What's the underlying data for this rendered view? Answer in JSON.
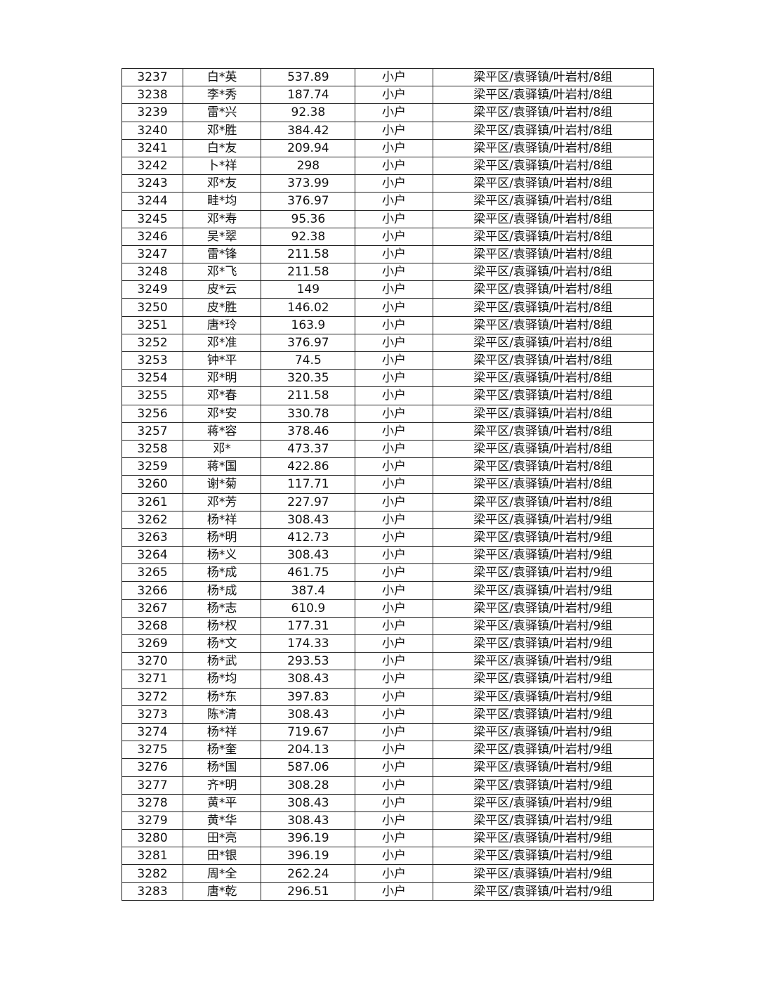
{
  "table": {
    "rows": [
      [
        "3237",
        "白*英",
        "537.89",
        "小户",
        "梁平区/袁驿镇/叶岩村/8组"
      ],
      [
        "3238",
        "李*秀",
        "187.74",
        "小户",
        "梁平区/袁驿镇/叶岩村/8组"
      ],
      [
        "3239",
        "雷*兴",
        "92.38",
        "小户",
        "梁平区/袁驿镇/叶岩村/8组"
      ],
      [
        "3240",
        "邓*胜",
        "384.42",
        "小户",
        "梁平区/袁驿镇/叶岩村/8组"
      ],
      [
        "3241",
        "白*友",
        "209.94",
        "小户",
        "梁平区/袁驿镇/叶岩村/8组"
      ],
      [
        "3242",
        "卜*祥",
        "298",
        "小户",
        "梁平区/袁驿镇/叶岩村/8组"
      ],
      [
        "3243",
        "邓*友",
        "373.99",
        "小户",
        "梁平区/袁驿镇/叶岩村/8组"
      ],
      [
        "3244",
        "畦*均",
        "376.97",
        "小户",
        "梁平区/袁驿镇/叶岩村/8组"
      ],
      [
        "3245",
        "邓*寿",
        "95.36",
        "小户",
        "梁平区/袁驿镇/叶岩村/8组"
      ],
      [
        "3246",
        "吴*翠",
        "92.38",
        "小户",
        "梁平区/袁驿镇/叶岩村/8组"
      ],
      [
        "3247",
        "雷*锋",
        "211.58",
        "小户",
        "梁平区/袁驿镇/叶岩村/8组"
      ],
      [
        "3248",
        "邓*飞",
        "211.58",
        "小户",
        "梁平区/袁驿镇/叶岩村/8组"
      ],
      [
        "3249",
        "皮*云",
        "149",
        "小户",
        "梁平区/袁驿镇/叶岩村/8组"
      ],
      [
        "3250",
        "皮*胜",
        "146.02",
        "小户",
        "梁平区/袁驿镇/叶岩村/8组"
      ],
      [
        "3251",
        "唐*玲",
        "163.9",
        "小户",
        "梁平区/袁驿镇/叶岩村/8组"
      ],
      [
        "3252",
        "邓*准",
        "376.97",
        "小户",
        "梁平区/袁驿镇/叶岩村/8组"
      ],
      [
        "3253",
        "钟*平",
        "74.5",
        "小户",
        "梁平区/袁驿镇/叶岩村/8组"
      ],
      [
        "3254",
        "邓*明",
        "320.35",
        "小户",
        "梁平区/袁驿镇/叶岩村/8组"
      ],
      [
        "3255",
        "邓*春",
        "211.58",
        "小户",
        "梁平区/袁驿镇/叶岩村/8组"
      ],
      [
        "3256",
        "邓*安",
        "330.78",
        "小户",
        "梁平区/袁驿镇/叶岩村/8组"
      ],
      [
        "3257",
        "蒋*容",
        "378.46",
        "小户",
        "梁平区/袁驿镇/叶岩村/8组"
      ],
      [
        "3258",
        "邓*",
        "473.37",
        "小户",
        "梁平区/袁驿镇/叶岩村/8组"
      ],
      [
        "3259",
        "蒋*国",
        "422.86",
        "小户",
        "梁平区/袁驿镇/叶岩村/8组"
      ],
      [
        "3260",
        "谢*菊",
        "117.71",
        "小户",
        "梁平区/袁驿镇/叶岩村/8组"
      ],
      [
        "3261",
        "邓*芳",
        "227.97",
        "小户",
        "梁平区/袁驿镇/叶岩村/8组"
      ],
      [
        "3262",
        "杨*祥",
        "308.43",
        "小户",
        "梁平区/袁驿镇/叶岩村/9组"
      ],
      [
        "3263",
        "杨*明",
        "412.73",
        "小户",
        "梁平区/袁驿镇/叶岩村/9组"
      ],
      [
        "3264",
        "杨*义",
        "308.43",
        "小户",
        "梁平区/袁驿镇/叶岩村/9组"
      ],
      [
        "3265",
        "杨*成",
        "461.75",
        "小户",
        "梁平区/袁驿镇/叶岩村/9组"
      ],
      [
        "3266",
        "杨*成",
        "387.4",
        "小户",
        "梁平区/袁驿镇/叶岩村/9组"
      ],
      [
        "3267",
        "杨*志",
        "610.9",
        "小户",
        "梁平区/袁驿镇/叶岩村/9组"
      ],
      [
        "3268",
        "杨*权",
        "177.31",
        "小户",
        "梁平区/袁驿镇/叶岩村/9组"
      ],
      [
        "3269",
        "杨*文",
        "174.33",
        "小户",
        "梁平区/袁驿镇/叶岩村/9组"
      ],
      [
        "3270",
        "杨*武",
        "293.53",
        "小户",
        "梁平区/袁驿镇/叶岩村/9组"
      ],
      [
        "3271",
        "杨*均",
        "308.43",
        "小户",
        "梁平区/袁驿镇/叶岩村/9组"
      ],
      [
        "3272",
        "杨*东",
        "397.83",
        "小户",
        "梁平区/袁驿镇/叶岩村/9组"
      ],
      [
        "3273",
        "陈*清",
        "308.43",
        "小户",
        "梁平区/袁驿镇/叶岩村/9组"
      ],
      [
        "3274",
        "杨*祥",
        "719.67",
        "小户",
        "梁平区/袁驿镇/叶岩村/9组"
      ],
      [
        "3275",
        "杨*奎",
        "204.13",
        "小户",
        "梁平区/袁驿镇/叶岩村/9组"
      ],
      [
        "3276",
        "杨*国",
        "587.06",
        "小户",
        "梁平区/袁驿镇/叶岩村/9组"
      ],
      [
        "3277",
        "齐*明",
        "308.28",
        "小户",
        "梁平区/袁驿镇/叶岩村/9组"
      ],
      [
        "3278",
        "黄*平",
        "308.43",
        "小户",
        "梁平区/袁驿镇/叶岩村/9组"
      ],
      [
        "3279",
        "黄*华",
        "308.43",
        "小户",
        "梁平区/袁驿镇/叶岩村/9组"
      ],
      [
        "3280",
        "田*亮",
        "396.19",
        "小户",
        "梁平区/袁驿镇/叶岩村/9组"
      ],
      [
        "3281",
        "田*银",
        "396.19",
        "小户",
        "梁平区/袁驿镇/叶岩村/9组"
      ],
      [
        "3282",
        "周*全",
        "262.24",
        "小户",
        "梁平区/袁驿镇/叶岩村/9组"
      ],
      [
        "3283",
        "唐*乾",
        "296.51",
        "小户",
        "梁平区/袁驿镇/叶岩村/9组"
      ]
    ]
  }
}
